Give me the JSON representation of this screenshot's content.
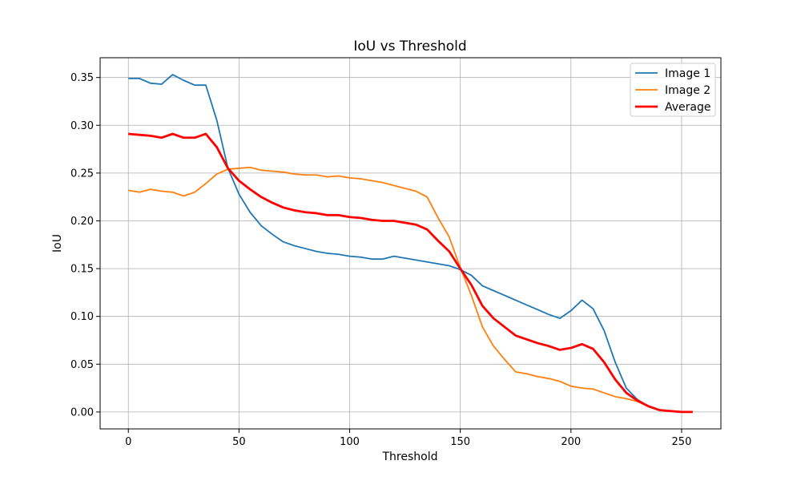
{
  "chart_data": {
    "type": "line",
    "title": "IoU vs Threshold",
    "xlabel": "Threshold",
    "ylabel": "IoU",
    "xlim": [
      -12.75,
      267.75
    ],
    "ylim": [
      -0.0177,
      0.3707
    ],
    "xticks": [
      0,
      50,
      100,
      150,
      200,
      250
    ],
    "yticks": [
      0.0,
      0.05,
      0.1,
      0.15,
      0.2,
      0.25,
      0.3,
      0.35
    ],
    "ytick_labels": [
      "0.00",
      "0.05",
      "0.10",
      "0.15",
      "0.20",
      "0.25",
      "0.30",
      "0.35"
    ],
    "grid": true,
    "legend_position": "top-right",
    "x": [
      0,
      5,
      10,
      15,
      20,
      25,
      30,
      35,
      40,
      45,
      50,
      55,
      60,
      65,
      70,
      75,
      80,
      85,
      90,
      95,
      100,
      105,
      110,
      115,
      120,
      125,
      130,
      135,
      140,
      145,
      150,
      155,
      160,
      165,
      170,
      175,
      180,
      185,
      190,
      195,
      200,
      205,
      210,
      215,
      220,
      225,
      230,
      235,
      240,
      245,
      250,
      255
    ],
    "series": [
      {
        "name": "Image 1",
        "color": "#1f77b4",
        "width": 1.8,
        "values": [
          0.349,
          0.349,
          0.344,
          0.343,
          0.353,
          0.347,
          0.342,
          0.342,
          0.305,
          0.255,
          0.228,
          0.209,
          0.195,
          0.186,
          0.178,
          0.174,
          0.171,
          0.168,
          0.166,
          0.165,
          0.163,
          0.162,
          0.16,
          0.16,
          0.163,
          0.161,
          0.159,
          0.157,
          0.155,
          0.153,
          0.149,
          0.143,
          0.132,
          0.127,
          0.122,
          0.117,
          0.112,
          0.107,
          0.102,
          0.098,
          0.106,
          0.117,
          0.108,
          0.085,
          0.052,
          0.025,
          0.013,
          0.006,
          0.002,
          0.001,
          0.0,
          0.0
        ]
      },
      {
        "name": "Image 2",
        "color": "#ff7f0e",
        "width": 1.8,
        "values": [
          0.232,
          0.23,
          0.233,
          0.231,
          0.23,
          0.226,
          0.23,
          0.239,
          0.249,
          0.254,
          0.255,
          0.256,
          0.253,
          0.252,
          0.251,
          0.249,
          0.248,
          0.248,
          0.246,
          0.247,
          0.245,
          0.244,
          0.242,
          0.24,
          0.237,
          0.234,
          0.231,
          0.225,
          0.203,
          0.183,
          0.151,
          0.122,
          0.089,
          0.069,
          0.055,
          0.042,
          0.04,
          0.037,
          0.035,
          0.032,
          0.027,
          0.025,
          0.024,
          0.02,
          0.016,
          0.014,
          0.011,
          0.006,
          0.002,
          0.001,
          0.0,
          0.0
        ]
      },
      {
        "name": "Average",
        "color": "#ff0000",
        "width": 2.8,
        "values": [
          0.291,
          0.29,
          0.289,
          0.287,
          0.291,
          0.287,
          0.287,
          0.291,
          0.277,
          0.255,
          0.242,
          0.233,
          0.225,
          0.219,
          0.214,
          0.211,
          0.209,
          0.208,
          0.206,
          0.206,
          0.204,
          0.203,
          0.201,
          0.2,
          0.2,
          0.198,
          0.196,
          0.191,
          0.179,
          0.168,
          0.15,
          0.133,
          0.111,
          0.098,
          0.089,
          0.08,
          0.076,
          0.072,
          0.069,
          0.065,
          0.067,
          0.071,
          0.066,
          0.052,
          0.034,
          0.02,
          0.012,
          0.006,
          0.002,
          0.001,
          0.0,
          0.0
        ]
      }
    ]
  }
}
